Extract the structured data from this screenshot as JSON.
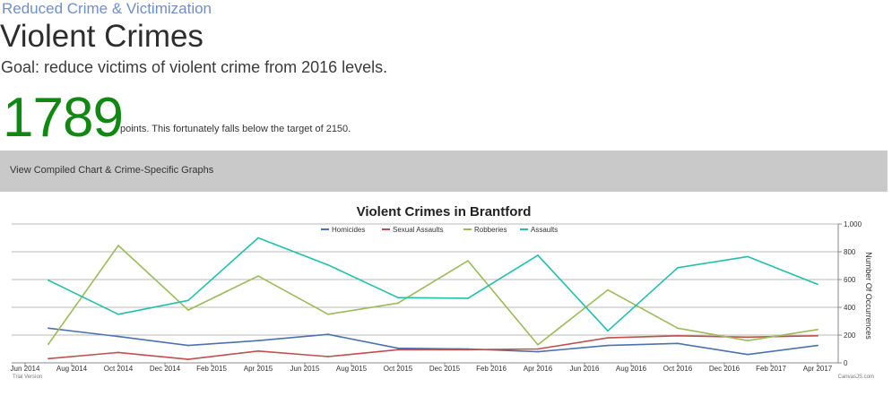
{
  "header": {
    "category": "Reduced Crime & Victimization",
    "title": "Violent Crimes",
    "goal": "Goal: reduce victims of violent crime from 2016 levels."
  },
  "metric": {
    "value": "1789",
    "note": "points. This fortunately falls below the target of 2150."
  },
  "link_bar": {
    "label": "View Compiled Chart & Crime-Specific Graphs"
  },
  "chart_data": {
    "type": "line",
    "title": "Violent Crimes in Brantford",
    "ylabel": "Number Of Occurrences",
    "ylim": [
      0,
      1000
    ],
    "yticks": [
      "0",
      "200",
      "400",
      "600",
      "800",
      "1,000"
    ],
    "x_tick_labels": [
      "Jun 2014",
      "Aug 2014",
      "Oct 2014",
      "Dec 2014",
      "Feb 2015",
      "Apr 2015",
      "Jun 2015",
      "Aug 2015",
      "Oct 2015",
      "Dec 2015",
      "Feb 2016",
      "Apr 2016",
      "Jun 2016",
      "Aug 2016",
      "Oct 2016",
      "Dec 2016",
      "Feb 2017",
      "Apr 2017"
    ],
    "x": [
      "Jul 2014",
      "Oct 2014",
      "Jan 2015",
      "Apr 2015",
      "Jul 2015",
      "Oct 2015",
      "Jan 2016",
      "Apr 2016",
      "Jul 2016",
      "Oct 2016",
      "Jan 2017",
      "Apr 2017"
    ],
    "grid": true,
    "legend_position": "top",
    "series": [
      {
        "name": "Homicides",
        "color": "#4a72b0",
        "values": [
          250,
          190,
          125,
          160,
          205,
          105,
          100,
          80,
          125,
          140,
          60,
          125
        ]
      },
      {
        "name": "Sexual Assaults",
        "color": "#c0504d",
        "values": [
          30,
          75,
          25,
          85,
          45,
          95,
          95,
          100,
          180,
          195,
          185,
          195
        ]
      },
      {
        "name": "Robberies",
        "color": "#9bbb59",
        "values": [
          135,
          845,
          380,
          625,
          350,
          430,
          735,
          130,
          525,
          250,
          160,
          240
        ]
      },
      {
        "name": "Assaults",
        "color": "#23bfaa",
        "values": [
          595,
          350,
          450,
          900,
          705,
          470,
          465,
          775,
          230,
          685,
          765,
          565
        ]
      }
    ],
    "footer_left": "Trial Version",
    "footer_right": "CanvasJS.com"
  }
}
